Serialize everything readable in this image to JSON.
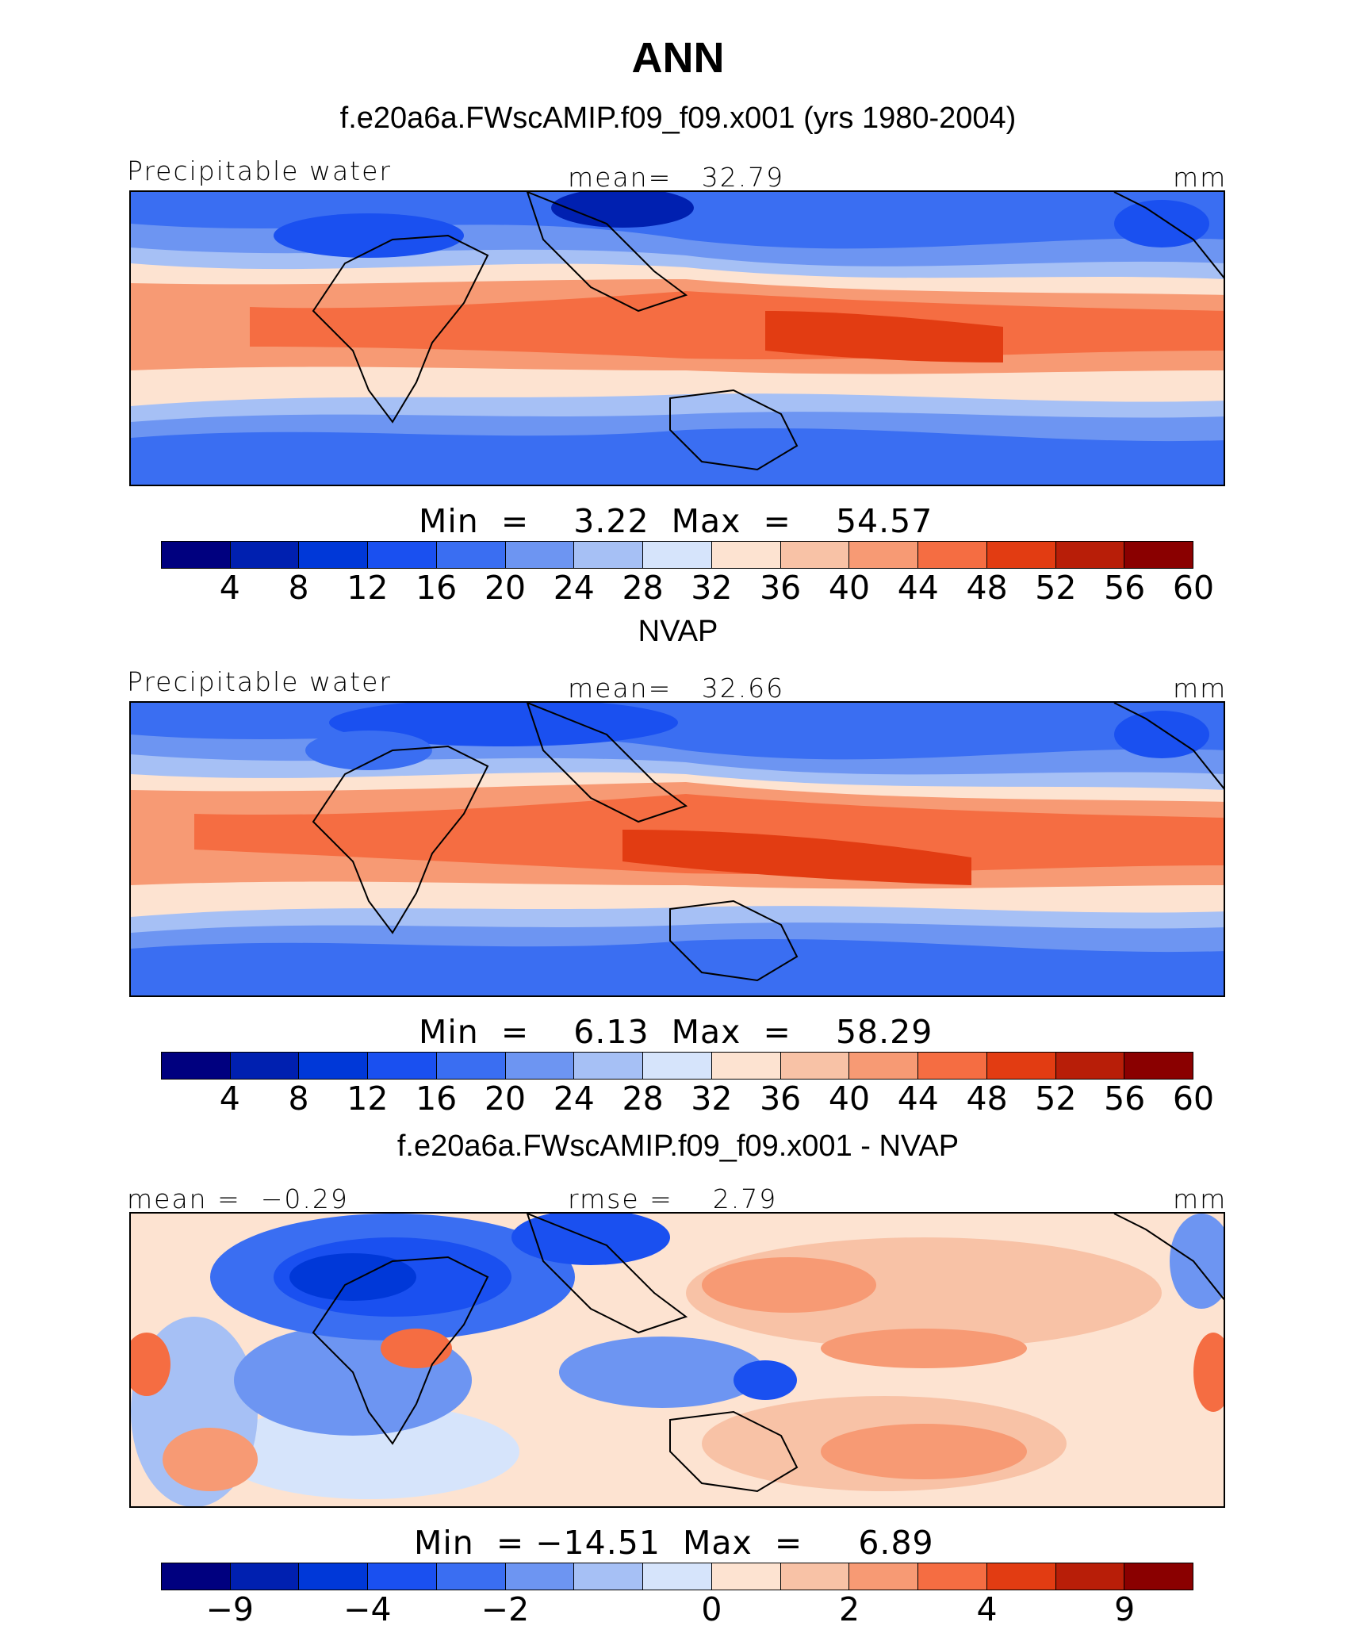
{
  "title": "ANN",
  "palette": [
    "#00007f",
    "#0020b0",
    "#0038d8",
    "#1a50f0",
    "#3a6ef2",
    "#6d95f2",
    "#a6c0f5",
    "#d6e4fb",
    "#fde3d1",
    "#f8c2a6",
    "#f79a74",
    "#f56d42",
    "#e23c12",
    "#b81e08",
    "#8a0000"
  ],
  "panels": [
    {
      "subtitle": "f.e20a6a.FWscAMIP.f09_f09.x001 (yrs 1980-2004)",
      "left_label": "Precipitable water",
      "center_label": "mean=   32.79",
      "units": "mm",
      "minmax": "Min  =    3.22  Max  =    54.57",
      "ticks": [
        "4",
        "8",
        "12",
        "16",
        "20",
        "24",
        "28",
        "32",
        "36",
        "40",
        "44",
        "48",
        "52",
        "56",
        "60"
      ],
      "stats": {
        "mean": 32.79,
        "min": 3.22,
        "max": 54.57
      }
    },
    {
      "subtitle": "NVAP",
      "left_label": "Precipitable water",
      "center_label": "mean=   32.66",
      "units": "mm",
      "minmax": "Min  =    6.13  Max  =    58.29",
      "ticks": [
        "4",
        "8",
        "12",
        "16",
        "20",
        "24",
        "28",
        "32",
        "36",
        "40",
        "44",
        "48",
        "52",
        "56",
        "60"
      ],
      "stats": {
        "mean": 32.66,
        "min": 6.13,
        "max": 58.29
      }
    },
    {
      "subtitle": "f.e20a6a.FWscAMIP.f09_f09.x001 - NVAP",
      "left_label": "mean =  −0.29",
      "center_label": "rmse =    2.79",
      "units": "mm",
      "minmax": "Min  = −14.51  Max  =     6.89",
      "ticks": [
        "−9",
        "−4",
        "−2",
        "0",
        "2",
        "4",
        "9"
      ],
      "stats": {
        "mean": -0.29,
        "rmse": 2.79,
        "min": -14.51,
        "max": 6.89
      }
    }
  ]
}
